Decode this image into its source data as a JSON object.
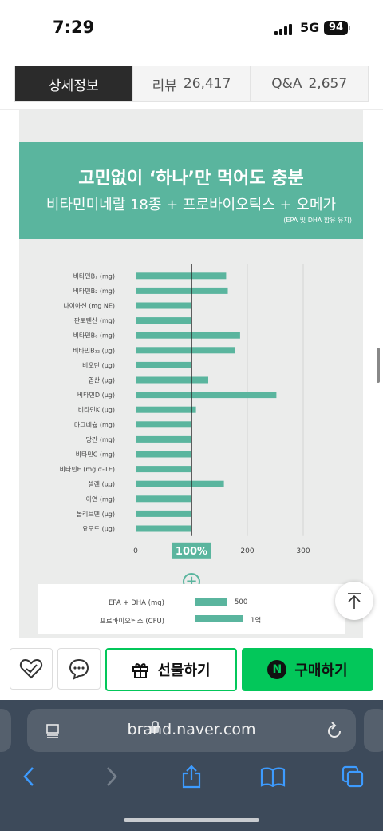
{
  "status_bar": {
    "time": "7:29",
    "network": "5G",
    "battery": "94"
  },
  "tabs": [
    {
      "label": "상세정보",
      "count": "",
      "active": true
    },
    {
      "label": "리뷰",
      "count": "26,417",
      "active": false
    },
    {
      "label": "Q&A",
      "count": "2,657",
      "active": false
    }
  ],
  "banner": {
    "headline": "고민없이 ‘하나’만 먹어도 충분",
    "subheadline": "비타민미네랄 18종 + 프로바이오틱스 + 오메가",
    "note": "(EPA 및 DHA 함유 유지)"
  },
  "chart_data": {
    "type": "bar",
    "orientation": "horizontal",
    "categories": [
      "비타민B₁ (mg)",
      "비타민B₂ (mg)",
      "나이아신 (mg NE)",
      "판토텐산 (mg)",
      "비타민B₆ (mg)",
      "비타민B₁₂ (μg)",
      "비오틴 (μg)",
      "엽산 (μg)",
      "비타민D (μg)",
      "비타민K (μg)",
      "마그네슘 (mg)",
      "망간 (mg)",
      "비타민C (mg)",
      "비타민E (mg α-TE)",
      "셀렌 (μg)",
      "아연 (mg)",
      "몰리브덴 (μg)",
      "요오드 (μg)"
    ],
    "values": [
      162,
      165,
      100,
      100,
      187,
      178,
      100,
      130,
      252,
      108,
      100,
      100,
      100,
      100,
      158,
      100,
      100,
      100
    ],
    "xticks": [
      "0",
      "100%",
      "200",
      "300"
    ],
    "xlim": [
      0,
      300
    ],
    "reference_line": 100,
    "bar_color": "#5ab59e",
    "highlight_tick": "100%"
  },
  "supplement": {
    "rows": [
      {
        "label": "EPA + DHA (mg)",
        "value": "500",
        "fill": 0.5
      },
      {
        "label": "프로바이오틱스 (CFU)",
        "value": "1억",
        "fill": 0.74
      }
    ]
  },
  "bottom_bar": {
    "gift_label": "선물하기",
    "buy_label": "구매하기",
    "buy_badge": "N"
  },
  "browser": {
    "url": "brand.naver.com"
  },
  "colors": {
    "accent": "#5ab59e",
    "naver_green": "#03c75a"
  }
}
